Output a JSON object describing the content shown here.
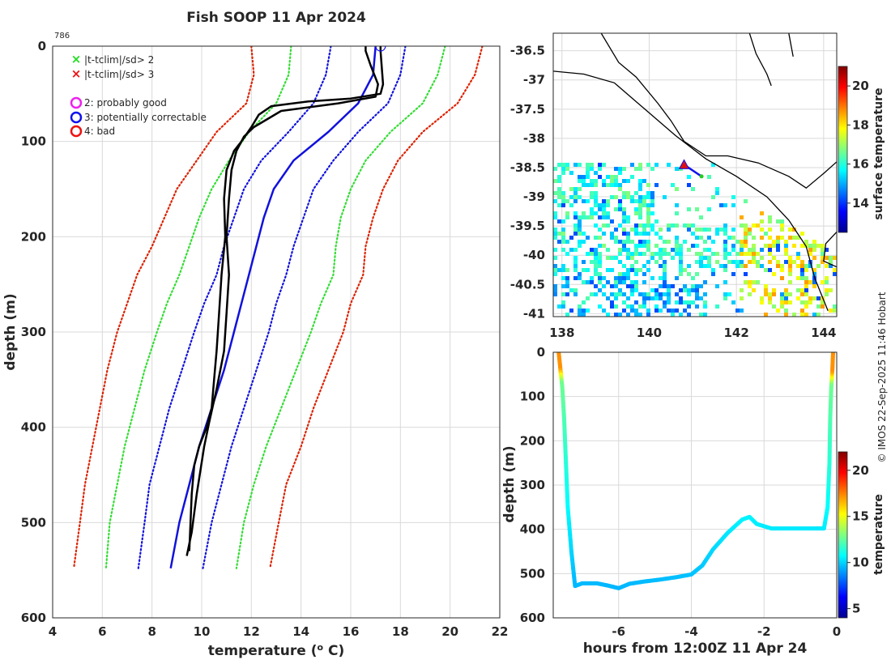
{
  "chart_data": [
    {
      "type": "line",
      "title": "Fish SOOP 11 Apr 2024",
      "annotation": "786",
      "xlabel": "temperature (",
      "xlabel_sup": "o",
      "xlabel_end": " C)",
      "ylabel": "depth (m)",
      "xlim": [
        4,
        22
      ],
      "ylim": [
        0,
        600
      ],
      "xticks": [
        "4",
        "6",
        "8",
        "10",
        "12",
        "14",
        "16",
        "18",
        "20",
        "22"
      ],
      "yticks": [
        "0",
        "100",
        "200",
        "300",
        "400",
        "500",
        "600"
      ],
      "legend": [
        {
          "marker": "x",
          "color": "#22dd22",
          "label": "|t-tclim|/sd> 2"
        },
        {
          "marker": "x",
          "color": "#ee1111",
          "label": "|t-tclim|/sd> 3"
        },
        {
          "marker": "o",
          "color": "#ee22ee",
          "label": "2: probably good"
        },
        {
          "marker": "o",
          "color": "#1111ee",
          "label": "3: potentially correctable"
        },
        {
          "marker": "o",
          "color": "#ee1111",
          "label": "4: bad"
        }
      ],
      "series": [
        {
          "name": "clim -3sd",
          "color": "#dd2200",
          "style": "dotted",
          "points": [
            [
              12.0,
              0
            ],
            [
              12.1,
              30
            ],
            [
              11.8,
              60
            ],
            [
              10.6,
              90
            ],
            [
              9.8,
              120
            ],
            [
              9.0,
              150
            ],
            [
              8.5,
              180
            ],
            [
              8.0,
              210
            ],
            [
              7.4,
              240
            ],
            [
              7.0,
              270
            ],
            [
              6.6,
              300
            ],
            [
              6.2,
              340
            ],
            [
              5.9,
              380
            ],
            [
              5.6,
              420
            ],
            [
              5.3,
              460
            ],
            [
              5.1,
              500
            ],
            [
              4.85,
              548
            ]
          ]
        },
        {
          "name": "clim -2sd",
          "color": "#33dd33",
          "style": "dotted",
          "points": [
            [
              13.6,
              0
            ],
            [
              13.5,
              30
            ],
            [
              13.0,
              60
            ],
            [
              11.9,
              90
            ],
            [
              11.1,
              120
            ],
            [
              10.4,
              150
            ],
            [
              9.9,
              180
            ],
            [
              9.5,
              210
            ],
            [
              9.1,
              240
            ],
            [
              8.6,
              270
            ],
            [
              8.2,
              300
            ],
            [
              7.7,
              340
            ],
            [
              7.3,
              380
            ],
            [
              6.9,
              420
            ],
            [
              6.6,
              460
            ],
            [
              6.3,
              500
            ],
            [
              6.15,
              548
            ]
          ]
        },
        {
          "name": "clim -1sd",
          "color": "#1111dd",
          "style": "dotted",
          "points": [
            [
              15.2,
              0
            ],
            [
              15.0,
              30
            ],
            [
              14.5,
              60
            ],
            [
              13.5,
              90
            ],
            [
              12.4,
              120
            ],
            [
              11.7,
              150
            ],
            [
              11.3,
              180
            ],
            [
              10.9,
              210
            ],
            [
              10.6,
              240
            ],
            [
              10.1,
              270
            ],
            [
              9.7,
              300
            ],
            [
              9.2,
              340
            ],
            [
              8.7,
              380
            ],
            [
              8.3,
              420
            ],
            [
              7.9,
              460
            ],
            [
              7.7,
              500
            ],
            [
              7.45,
              548
            ]
          ]
        },
        {
          "name": "clim mean",
          "color": "#1111dd",
          "style": "solid",
          "points": [
            [
              17.0,
              0
            ],
            [
              16.9,
              30
            ],
            [
              16.3,
              60
            ],
            [
              15.1,
              90
            ],
            [
              13.7,
              120
            ],
            [
              12.9,
              150
            ],
            [
              12.5,
              180
            ],
            [
              12.2,
              210
            ],
            [
              11.9,
              240
            ],
            [
              11.6,
              270
            ],
            [
              11.3,
              300
            ],
            [
              10.9,
              340
            ],
            [
              10.4,
              380
            ],
            [
              9.9,
              420
            ],
            [
              9.5,
              460
            ],
            [
              9.1,
              500
            ],
            [
              8.75,
              548
            ]
          ]
        },
        {
          "name": "clim +1sd",
          "color": "#1111dd",
          "style": "dotted",
          "points": [
            [
              18.2,
              0
            ],
            [
              18.0,
              30
            ],
            [
              17.5,
              60
            ],
            [
              16.3,
              90
            ],
            [
              15.3,
              120
            ],
            [
              14.5,
              150
            ],
            [
              14.1,
              180
            ],
            [
              13.7,
              210
            ],
            [
              13.4,
              240
            ],
            [
              13.0,
              270
            ],
            [
              12.7,
              300
            ],
            [
              12.2,
              340
            ],
            [
              11.7,
              380
            ],
            [
              11.2,
              420
            ],
            [
              10.8,
              460
            ],
            [
              10.4,
              500
            ],
            [
              10.05,
              548
            ]
          ]
        },
        {
          "name": "clim +2sd",
          "color": "#33dd33",
          "style": "dotted",
          "points": [
            [
              19.8,
              0
            ],
            [
              19.5,
              30
            ],
            [
              18.9,
              60
            ],
            [
              17.6,
              90
            ],
            [
              16.6,
              120
            ],
            [
              16.0,
              150
            ],
            [
              15.6,
              180
            ],
            [
              15.4,
              210
            ],
            [
              15.3,
              240
            ],
            [
              14.8,
              270
            ],
            [
              14.4,
              300
            ],
            [
              13.8,
              340
            ],
            [
              13.2,
              380
            ],
            [
              12.6,
              420
            ],
            [
              12.1,
              460
            ],
            [
              11.7,
              500
            ],
            [
              11.4,
              548
            ]
          ]
        },
        {
          "name": "clim +3sd",
          "color": "#dd2200",
          "style": "dotted",
          "points": [
            [
              21.3,
              0
            ],
            [
              21.0,
              30
            ],
            [
              20.3,
              60
            ],
            [
              18.9,
              90
            ],
            [
              17.9,
              120
            ],
            [
              17.3,
              150
            ],
            [
              16.9,
              180
            ],
            [
              16.6,
              210
            ],
            [
              16.5,
              240
            ],
            [
              16.0,
              270
            ],
            [
              15.7,
              300
            ],
            [
              15.1,
              340
            ],
            [
              14.5,
              380
            ],
            [
              14.0,
              420
            ],
            [
              13.4,
              460
            ],
            [
              13.1,
              500
            ],
            [
              12.75,
              548
            ]
          ]
        },
        {
          "name": "profile down",
          "color": "#000000",
          "style": "solid",
          "points": [
            [
              17.2,
              0
            ],
            [
              17.2,
              5
            ],
            [
              17.3,
              40
            ],
            [
              17.2,
              50
            ],
            [
              16.0,
              55
            ],
            [
              14.3,
              58
            ],
            [
              12.8,
              63
            ],
            [
              12.3,
              72
            ],
            [
              12.0,
              85
            ],
            [
              11.6,
              100
            ],
            [
              11.3,
              110
            ],
            [
              11.0,
              130
            ],
            [
              10.9,
              160
            ],
            [
              10.95,
              200
            ],
            [
              10.8,
              240
            ],
            [
              10.7,
              280
            ],
            [
              10.6,
              320
            ],
            [
              10.5,
              350
            ],
            [
              10.4,
              380
            ],
            [
              10.2,
              400
            ],
            [
              9.9,
              420
            ],
            [
              9.7,
              440
            ],
            [
              9.6,
              470
            ],
            [
              9.55,
              500
            ],
            [
              9.5,
              530
            ]
          ]
        },
        {
          "name": "profile up",
          "color": "#000000",
          "style": "solid",
          "points": [
            [
              9.4,
              535
            ],
            [
              9.6,
              510
            ],
            [
              9.8,
              470
            ],
            [
              10.1,
              420
            ],
            [
              10.3,
              395
            ],
            [
              10.6,
              360
            ],
            [
              10.9,
              320
            ],
            [
              11.0,
              280
            ],
            [
              11.1,
              240
            ],
            [
              11.0,
              200
            ],
            [
              11.1,
              160
            ],
            [
              11.2,
              130
            ],
            [
              11.4,
              110
            ],
            [
              11.7,
              95
            ],
            [
              12.1,
              85
            ],
            [
              13.2,
              68
            ],
            [
              15.5,
              60
            ],
            [
              17.0,
              53
            ],
            [
              17.1,
              40
            ],
            [
              16.8,
              20
            ],
            [
              16.6,
              5
            ],
            [
              16.6,
              0
            ]
          ]
        }
      ],
      "markers": [
        {
          "type": "circle",
          "color": "#1111ee",
          "x": 17.2,
          "y": 0
        }
      ]
    },
    {
      "type": "heatmap",
      "xlim": [
        137.8,
        144.3
      ],
      "ylim": [
        -41.05,
        -36.2
      ],
      "xticks": [
        "138",
        "140",
        "142",
        "144"
      ],
      "yticks": [
        "-36.5",
        "-37",
        "-37.5",
        "-38",
        "-38.5",
        "-39",
        "-39.5",
        "-40",
        "-40.5",
        "-41"
      ],
      "colorbar": {
        "label": "surface temperature",
        "range": [
          12.5,
          21.0
        ],
        "ticks": [
          "14",
          "16",
          "18",
          "20"
        ]
      },
      "ship_track": [
        [
          140.8,
          -38.45
        ],
        [
          141.2,
          -38.65
        ]
      ],
      "ship_marker": {
        "type": "triangle",
        "color": "#dd1111",
        "x": 140.8,
        "y": -38.45
      },
      "coastline": [
        [
          [
            138.9,
            -36.2
          ],
          [
            139.3,
            -36.7
          ],
          [
            139.7,
            -36.95
          ],
          [
            140.2,
            -37.4
          ],
          [
            140.5,
            -37.7
          ],
          [
            140.8,
            -38.05
          ],
          [
            141.3,
            -38.3
          ],
          [
            141.8,
            -38.3
          ],
          [
            142.5,
            -38.42
          ],
          [
            143.2,
            -38.65
          ],
          [
            143.6,
            -38.85
          ],
          [
            144.0,
            -38.6
          ],
          [
            144.3,
            -38.4
          ]
        ],
        [
          [
            137.8,
            -36.85
          ],
          [
            138.5,
            -36.9
          ],
          [
            139.2,
            -37.05
          ],
          [
            139.9,
            -37.5
          ],
          [
            140.6,
            -37.95
          ],
          [
            141.3,
            -38.35
          ],
          [
            142.0,
            -38.65
          ],
          [
            142.7,
            -39.0
          ],
          [
            143.2,
            -39.4
          ],
          [
            143.6,
            -39.85
          ],
          [
            143.8,
            -40.4
          ],
          [
            144.1,
            -40.95
          ]
        ],
        [
          [
            142.3,
            -36.2
          ],
          [
            142.45,
            -36.55
          ],
          [
            142.7,
            -36.9
          ],
          [
            142.8,
            -37.1
          ]
        ],
        [
          [
            143.2,
            -36.2
          ],
          [
            143.3,
            -36.6
          ]
        ],
        [
          [
            144.3,
            -39.6
          ],
          [
            144.05,
            -39.8
          ],
          [
            144.0,
            -40.1
          ],
          [
            144.3,
            -40.2
          ]
        ]
      ]
    },
    {
      "type": "scatter",
      "xlabel": "hours from 12:00Z 11 Apr 24",
      "ylabel": "depth (m)",
      "xlim": [
        -7.8,
        0
      ],
      "ylim": [
        0,
        600
      ],
      "xticks": [
        "-6",
        "-4",
        "-2",
        "0"
      ],
      "yticks": [
        "0",
        "100",
        "200",
        "300",
        "400",
        "500",
        "600"
      ],
      "colorbar": {
        "label": "temperature",
        "range": [
          4,
          22
        ],
        "ticks": [
          "5",
          "10",
          "15",
          "20"
        ]
      },
      "path": [
        [
          -7.65,
          0
        ],
        [
          -7.6,
          40
        ],
        [
          -7.55,
          80
        ],
        [
          -7.5,
          150
        ],
        [
          -7.45,
          250
        ],
        [
          -7.4,
          350
        ],
        [
          -7.3,
          450
        ],
        [
          -7.2,
          528
        ],
        [
          -7.0,
          522
        ],
        [
          -6.6,
          522
        ],
        [
          -6.3,
          527
        ],
        [
          -6.0,
          533
        ],
        [
          -5.7,
          523
        ],
        [
          -5.3,
          518
        ],
        [
          -4.9,
          514
        ],
        [
          -4.4,
          508
        ],
        [
          -4.0,
          502
        ],
        [
          -3.7,
          482
        ],
        [
          -3.4,
          445
        ],
        [
          -3.0,
          408
        ],
        [
          -2.6,
          378
        ],
        [
          -2.4,
          372
        ],
        [
          -2.2,
          388
        ],
        [
          -1.8,
          398
        ],
        [
          -1.2,
          398
        ],
        [
          -0.6,
          398
        ],
        [
          -0.35,
          398
        ],
        [
          -0.25,
          350
        ],
        [
          -0.2,
          250
        ],
        [
          -0.18,
          150
        ],
        [
          -0.15,
          80
        ],
        [
          -0.12,
          40
        ],
        [
          -0.1,
          0
        ]
      ]
    }
  ],
  "credit": "© IMOS 22-Sep-2025 11:46 Hobart"
}
